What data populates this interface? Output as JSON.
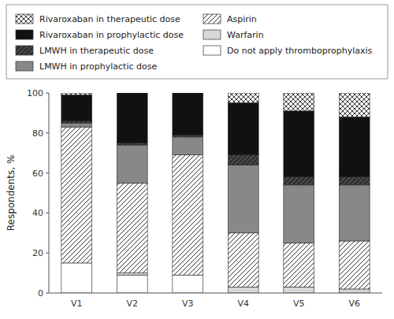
{
  "chart_data": {
    "type": "bar",
    "stacked": true,
    "categories": [
      "V1",
      "V2",
      "V3",
      "V4",
      "V5",
      "V6"
    ],
    "series": [
      {
        "name": "Do not apply thromboprophylaxis",
        "color": "#ffffff",
        "values": [
          15,
          9,
          9,
          0,
          0,
          0
        ]
      },
      {
        "name": "Warfarin",
        "color": "#d8d8d8",
        "values": [
          0,
          1,
          0,
          3,
          3,
          2
        ]
      },
      {
        "name": "Aspirin",
        "color": "#ffffff",
        "values": [
          68,
          45,
          60,
          27,
          22,
          24
        ]
      },
      {
        "name": "LMWH in prophylactic dose",
        "color": "#888888",
        "values": [
          2,
          19,
          9,
          34,
          29,
          28
        ]
      },
      {
        "name": "LMWH in therapeutic dose",
        "color": "#444444",
        "values": [
          1,
          1,
          1,
          5,
          4,
          4
        ]
      },
      {
        "name": "Rivaroxaban in prophylactic dose",
        "color": "#111111",
        "values": [
          13,
          25,
          21,
          26,
          33,
          30
        ]
      },
      {
        "name": "Rivaroxaban in therapeutic dose",
        "color": "#ffffff",
        "values": [
          1,
          0,
          0,
          5,
          9,
          12
        ]
      }
    ],
    "ylabel": "Respondents, %",
    "ylim": [
      0,
      100
    ],
    "yticks": [
      0,
      20,
      40,
      60,
      80,
      100
    ]
  }
}
